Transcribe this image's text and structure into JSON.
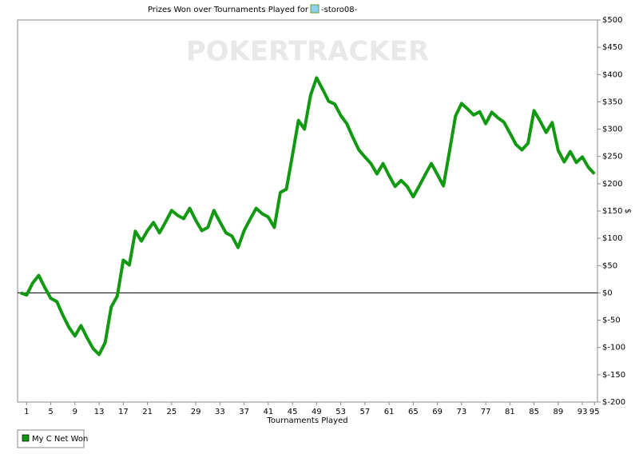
{
  "chart_data": {
    "type": "line",
    "title": "Prizes Won over Tournaments Played for",
    "player": "-storo08-",
    "watermark": "POKERTRACKER",
    "x_label": "Tournaments Played",
    "y_label": "$",
    "x": [
      0,
      1,
      2,
      3,
      4,
      5,
      6,
      7,
      8,
      9,
      10,
      11,
      12,
      13,
      14,
      15,
      16,
      17,
      18,
      19,
      20,
      21,
      22,
      23,
      24,
      25,
      26,
      27,
      28,
      29,
      30,
      31,
      32,
      33,
      34,
      35,
      36,
      37,
      38,
      39,
      40,
      41,
      42,
      43,
      44,
      45,
      46,
      47,
      48,
      49,
      50,
      51,
      52,
      53,
      54,
      55,
      56,
      57,
      58,
      59,
      60,
      61,
      62,
      63,
      64,
      65,
      66,
      67,
      68,
      69,
      70,
      71,
      72,
      73,
      74,
      75,
      76,
      77,
      78,
      79,
      80,
      81,
      82,
      83,
      84,
      85,
      86,
      87,
      88,
      89,
      90,
      91,
      92,
      93,
      94,
      95
    ],
    "series": [
      {
        "name": "My C Net Won",
        "color": "#119911",
        "values": [
          0,
          -4,
          18,
          32,
          10,
          -10,
          -16,
          -41,
          -63,
          -79,
          -60,
          -82,
          -102,
          -113,
          -91,
          -26,
          -6,
          60,
          51,
          113,
          95,
          114,
          129,
          110,
          130,
          151,
          142,
          136,
          155,
          133,
          114,
          120,
          151,
          130,
          110,
          104,
          83,
          114,
          135,
          155,
          145,
          139,
          120,
          184,
          190,
          252,
          316,
          300,
          362,
          394,
          373,
          351,
          346,
          325,
          310,
          285,
          262,
          249,
          237,
          218,
          237,
          215,
          195,
          206,
          195,
          176,
          196,
          217,
          237,
          217,
          196,
          259,
          324,
          347,
          337,
          326,
          332,
          310,
          331,
          321,
          313,
          293,
          272,
          262,
          274,
          334,
          315,
          294,
          312,
          261,
          240,
          259,
          239,
          249,
          230,
          218
        ]
      }
    ],
    "xlim": [
      -0.5,
      95.5
    ],
    "xticks": [
      1,
      5,
      9,
      13,
      17,
      21,
      25,
      29,
      33,
      37,
      41,
      45,
      49,
      53,
      57,
      61,
      65,
      69,
      73,
      77,
      81,
      85,
      89,
      93,
      95
    ],
    "ylim": [
      -200,
      500
    ],
    "yticks": [
      {
        "value": -200,
        "label": "$-200"
      },
      {
        "value": -150,
        "label": "$-150"
      },
      {
        "value": -100,
        "label": "$-100"
      },
      {
        "value": -50,
        "label": "$-50"
      },
      {
        "value": 0,
        "label": "$0"
      },
      {
        "value": 50,
        "label": "$50"
      },
      {
        "value": 100,
        "label": "$100"
      },
      {
        "value": 150,
        "label": "$150"
      },
      {
        "value": 200,
        "label": "$200"
      },
      {
        "value": 250,
        "label": "$250"
      },
      {
        "value": 300,
        "label": "$300"
      },
      {
        "value": 350,
        "label": "$350"
      },
      {
        "value": 400,
        "label": "$400"
      },
      {
        "value": 450,
        "label": "$450"
      },
      {
        "value": 500,
        "label": "$500"
      }
    ]
  }
}
